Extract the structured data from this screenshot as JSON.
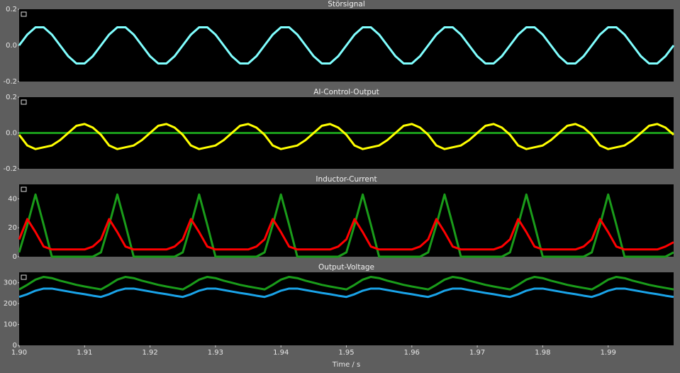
{
  "chart_data": [
    {
      "type": "line",
      "title": "Störsignal",
      "x": [
        1.9,
        1.90125,
        1.9025,
        1.90375,
        1.905,
        1.90625,
        1.9075,
        1.90875,
        1.91,
        1.91125,
        1.9125,
        1.91375,
        1.915,
        1.91625,
        1.9175,
        1.91875,
        1.92,
        1.92125,
        1.9225,
        1.92375,
        1.925,
        1.92625,
        1.9275,
        1.92875,
        1.93,
        1.93125,
        1.9325,
        1.93375,
        1.935,
        1.93625,
        1.9375,
        1.93875,
        1.94,
        1.94125,
        1.9425,
        1.94375,
        1.945,
        1.94625,
        1.9475,
        1.94875,
        1.95,
        1.95125,
        1.9525,
        1.95375,
        1.955,
        1.95625,
        1.9575,
        1.95875,
        1.96,
        1.96125,
        1.9625,
        1.96375,
        1.965,
        1.96625,
        1.9675,
        1.96875,
        1.97,
        1.97125,
        1.9725,
        1.97375,
        1.975,
        1.97625,
        1.9775,
        1.97875,
        1.98,
        1.98125,
        1.9825,
        1.98375,
        1.985,
        1.98625,
        1.9875,
        1.98875,
        1.99,
        1.99125,
        1.9925,
        1.99375,
        1.995,
        1.99625,
        1.9975,
        1.99875,
        2.0
      ],
      "series": [
        {
          "color": "#80ffff",
          "values": [
            0,
            0.06,
            0.1,
            0.1,
            0.06,
            0,
            -0.06,
            -0.1,
            -0.1,
            -0.06,
            0,
            0.06,
            0.1,
            0.1,
            0.06,
            0,
            -0.06,
            -0.1,
            -0.1,
            -0.06,
            0,
            0.06,
            0.1,
            0.1,
            0.06,
            0,
            -0.06,
            -0.1,
            -0.1,
            -0.06,
            0,
            0.06,
            0.1,
            0.1,
            0.06,
            0,
            -0.06,
            -0.1,
            -0.1,
            -0.06,
            0,
            0.06,
            0.1,
            0.1,
            0.06,
            0,
            -0.06,
            -0.1,
            -0.1,
            -0.06,
            0,
            0.06,
            0.1,
            0.1,
            0.06,
            0,
            -0.06,
            -0.1,
            -0.1,
            -0.06,
            0,
            0.06,
            0.1,
            0.1,
            0.06,
            0,
            -0.06,
            -0.1,
            -0.1,
            -0.06,
            0,
            0.06,
            0.1,
            0.1,
            0.06,
            0,
            -0.06,
            -0.1,
            -0.1,
            -0.06,
            0
          ]
        }
      ],
      "xlim": [
        1.9,
        2.0
      ],
      "ylim": [
        -0.2,
        0.2
      ],
      "yticks": [
        -0.2,
        {
          "value": 0,
          "label": "0.0"
        },
        0.2
      ]
    },
    {
      "type": "line",
      "title": "AI-Control-Output",
      "x": [
        1.9,
        1.90125,
        1.9025,
        1.90375,
        1.905,
        1.90625,
        1.9075,
        1.90875,
        1.91,
        1.91125,
        1.9125,
        1.91375,
        1.915,
        1.91625,
        1.9175,
        1.91875,
        1.92,
        1.92125,
        1.9225,
        1.92375,
        1.925,
        1.92625,
        1.9275,
        1.92875,
        1.93,
        1.93125,
        1.9325,
        1.93375,
        1.935,
        1.93625,
        1.9375,
        1.93875,
        1.94,
        1.94125,
        1.9425,
        1.94375,
        1.945,
        1.94625,
        1.9475,
        1.94875,
        1.95,
        1.95125,
        1.9525,
        1.95375,
        1.955,
        1.95625,
        1.9575,
        1.95875,
        1.96,
        1.96125,
        1.9625,
        1.96375,
        1.965,
        1.96625,
        1.9675,
        1.96875,
        1.97,
        1.97125,
        1.9725,
        1.97375,
        1.975,
        1.97625,
        1.9775,
        1.97875,
        1.98,
        1.98125,
        1.9825,
        1.98375,
        1.985,
        1.98625,
        1.9875,
        1.98875,
        1.99,
        1.99125,
        1.9925,
        1.99375,
        1.995,
        1.99625,
        1.9975,
        1.99875,
        2.0
      ],
      "series": [
        {
          "color": "#1a9c1a",
          "values": [
            0,
            0,
            0,
            0,
            0,
            0,
            0,
            0,
            0,
            0,
            0,
            0,
            0,
            0,
            0,
            0,
            0,
            0,
            0,
            0,
            0,
            0,
            0,
            0,
            0,
            0,
            0,
            0,
            0,
            0,
            0,
            0,
            0,
            0,
            0,
            0,
            0,
            0,
            0,
            0,
            0,
            0,
            0,
            0,
            0,
            0,
            0,
            0,
            0,
            0,
            0,
            0,
            0,
            0,
            0,
            0,
            0,
            0,
            0,
            0,
            0,
            0,
            0,
            0,
            0,
            0,
            0,
            0,
            0,
            0,
            0,
            0,
            0,
            0,
            0,
            0,
            0,
            0,
            0,
            0,
            0
          ]
        },
        {
          "color": "#ffff00",
          "values": [
            -0.01,
            -0.07,
            -0.09,
            -0.08,
            -0.07,
            -0.04,
            0,
            0.04,
            0.05,
            0.03,
            -0.01,
            -0.07,
            -0.09,
            -0.08,
            -0.07,
            -0.04,
            0,
            0.04,
            0.05,
            0.03,
            -0.01,
            -0.07,
            -0.09,
            -0.08,
            -0.07,
            -0.04,
            0,
            0.04,
            0.05,
            0.03,
            -0.01,
            -0.07,
            -0.09,
            -0.08,
            -0.07,
            -0.04,
            0,
            0.04,
            0.05,
            0.03,
            -0.01,
            -0.07,
            -0.09,
            -0.08,
            -0.07,
            -0.04,
            0,
            0.04,
            0.05,
            0.03,
            -0.01,
            -0.07,
            -0.09,
            -0.08,
            -0.07,
            -0.04,
            0,
            0.04,
            0.05,
            0.03,
            -0.01,
            -0.07,
            -0.09,
            -0.08,
            -0.07,
            -0.04,
            0,
            0.04,
            0.05,
            0.03,
            -0.01,
            -0.07,
            -0.09,
            -0.08,
            -0.07,
            -0.04,
            0,
            0.04,
            0.05,
            0.03,
            -0.01
          ]
        }
      ],
      "xlim": [
        1.9,
        2.0
      ],
      "ylim": [
        -0.2,
        0.2
      ],
      "yticks": [
        -0.2,
        {
          "value": 0,
          "label": "0.0"
        },
        0.2
      ]
    },
    {
      "type": "line",
      "title": "Inductor-Current",
      "x": [
        1.9,
        1.90125,
        1.9025,
        1.90375,
        1.905,
        1.90625,
        1.9075,
        1.90875,
        1.91,
        1.91125,
        1.9125,
        1.91375,
        1.915,
        1.91625,
        1.9175,
        1.91875,
        1.92,
        1.92125,
        1.9225,
        1.92375,
        1.925,
        1.92625,
        1.9275,
        1.92875,
        1.93,
        1.93125,
        1.9325,
        1.93375,
        1.935,
        1.93625,
        1.9375,
        1.93875,
        1.94,
        1.94125,
        1.9425,
        1.94375,
        1.945,
        1.94625,
        1.9475,
        1.94875,
        1.95,
        1.95125,
        1.9525,
        1.95375,
        1.955,
        1.95625,
        1.9575,
        1.95875,
        1.96,
        1.96125,
        1.9625,
        1.96375,
        1.965,
        1.96625,
        1.9675,
        1.96875,
        1.97,
        1.97125,
        1.9725,
        1.97375,
        1.975,
        1.97625,
        1.9775,
        1.97875,
        1.98,
        1.98125,
        1.9825,
        1.98375,
        1.985,
        1.98625,
        1.9875,
        1.98875,
        1.99,
        1.99125,
        1.9925,
        1.99375,
        1.995,
        1.99625,
        1.9975,
        1.99875,
        2.0
      ],
      "series": [
        {
          "color": "#1a9c1a",
          "values": [
            3,
            22,
            43,
            22,
            0,
            0,
            0,
            0,
            0,
            0,
            3,
            22,
            43,
            22,
            0,
            0,
            0,
            0,
            0,
            0,
            3,
            22,
            43,
            22,
            0,
            0,
            0,
            0,
            0,
            0,
            3,
            22,
            43,
            22,
            0,
            0,
            0,
            0,
            0,
            0,
            3,
            22,
            43,
            22,
            0,
            0,
            0,
            0,
            0,
            0,
            3,
            22,
            43,
            22,
            0,
            0,
            0,
            0,
            0,
            0,
            3,
            22,
            43,
            22,
            0,
            0,
            0,
            0,
            0,
            0,
            3,
            22,
            43,
            22,
            0,
            0,
            0,
            0,
            0,
            0,
            3
          ]
        },
        {
          "color": "#ff0000",
          "values": [
            12,
            26,
            17,
            7,
            5,
            5,
            5,
            5,
            5,
            7,
            12,
            26,
            17,
            7,
            5,
            5,
            5,
            5,
            5,
            7,
            12,
            26,
            17,
            7,
            5,
            5,
            5,
            5,
            5,
            7,
            12,
            26,
            17,
            7,
            5,
            5,
            5,
            5,
            5,
            7,
            12,
            26,
            17,
            7,
            5,
            5,
            5,
            5,
            5,
            7,
            12,
            26,
            17,
            7,
            5,
            5,
            5,
            5,
            5,
            7,
            12,
            26,
            17,
            7,
            5,
            5,
            5,
            5,
            5,
            7,
            12,
            26,
            17,
            7,
            5,
            5,
            5,
            5,
            5,
            7,
            10
          ]
        }
      ],
      "xlim": [
        1.9,
        2.0
      ],
      "ylim": [
        0,
        50
      ],
      "yticks": [
        0,
        20,
        40
      ]
    },
    {
      "type": "line",
      "title": "Output-Voltage",
      "xlabel": "Time / s",
      "x": [
        1.9,
        1.90125,
        1.9025,
        1.90375,
        1.905,
        1.90625,
        1.9075,
        1.90875,
        1.91,
        1.91125,
        1.9125,
        1.91375,
        1.915,
        1.91625,
        1.9175,
        1.91875,
        1.92,
        1.92125,
        1.9225,
        1.92375,
        1.925,
        1.92625,
        1.9275,
        1.92875,
        1.93,
        1.93125,
        1.9325,
        1.93375,
        1.935,
        1.93625,
        1.9375,
        1.93875,
        1.94,
        1.94125,
        1.9425,
        1.94375,
        1.945,
        1.94625,
        1.9475,
        1.94875,
        1.95,
        1.95125,
        1.9525,
        1.95375,
        1.955,
        1.95625,
        1.9575,
        1.95875,
        1.96,
        1.96125,
        1.9625,
        1.96375,
        1.965,
        1.96625,
        1.9675,
        1.96875,
        1.97,
        1.97125,
        1.9725,
        1.97375,
        1.975,
        1.97625,
        1.9775,
        1.97875,
        1.98,
        1.98125,
        1.9825,
        1.98375,
        1.985,
        1.98625,
        1.9875,
        1.98875,
        1.99,
        1.99125,
        1.9925,
        1.99375,
        1.995,
        1.99625,
        1.9975,
        1.99875,
        2.0
      ],
      "series": [
        {
          "color": "#1a9c1a",
          "values": [
            268,
            290,
            315,
            328,
            322,
            310,
            300,
            290,
            282,
            275,
            268,
            290,
            315,
            328,
            322,
            310,
            300,
            290,
            282,
            275,
            268,
            290,
            315,
            328,
            322,
            310,
            300,
            290,
            282,
            275,
            268,
            290,
            315,
            328,
            322,
            310,
            300,
            290,
            282,
            275,
            268,
            290,
            315,
            328,
            322,
            310,
            300,
            290,
            282,
            275,
            268,
            290,
            315,
            328,
            322,
            310,
            300,
            290,
            282,
            275,
            268,
            290,
            315,
            328,
            322,
            310,
            300,
            290,
            282,
            275,
            268,
            290,
            315,
            328,
            322,
            310,
            300,
            290,
            282,
            275,
            268
          ]
        },
        {
          "color": "#1aa3e8",
          "values": [
            232,
            245,
            262,
            272,
            272,
            265,
            258,
            251,
            245,
            238,
            232,
            245,
            262,
            272,
            272,
            265,
            258,
            251,
            245,
            238,
            232,
            245,
            262,
            272,
            272,
            265,
            258,
            251,
            245,
            238,
            232,
            245,
            262,
            272,
            272,
            265,
            258,
            251,
            245,
            238,
            232,
            245,
            262,
            272,
            272,
            265,
            258,
            251,
            245,
            238,
            232,
            245,
            262,
            272,
            272,
            265,
            258,
            251,
            245,
            238,
            232,
            245,
            262,
            272,
            272,
            265,
            258,
            251,
            245,
            238,
            232,
            245,
            262,
            272,
            272,
            265,
            258,
            251,
            245,
            238,
            232
          ]
        }
      ],
      "xlim": [
        1.9,
        2.0
      ],
      "ylim": [
        0,
        350
      ],
      "yticks": [
        0,
        100,
        200,
        300
      ],
      "xticks": [
        {
          "value": 1.9,
          "label": "1.90"
        },
        1.91,
        1.92,
        1.93,
        1.94,
        1.95,
        1.96,
        1.97,
        1.98,
        1.99
      ]
    }
  ]
}
